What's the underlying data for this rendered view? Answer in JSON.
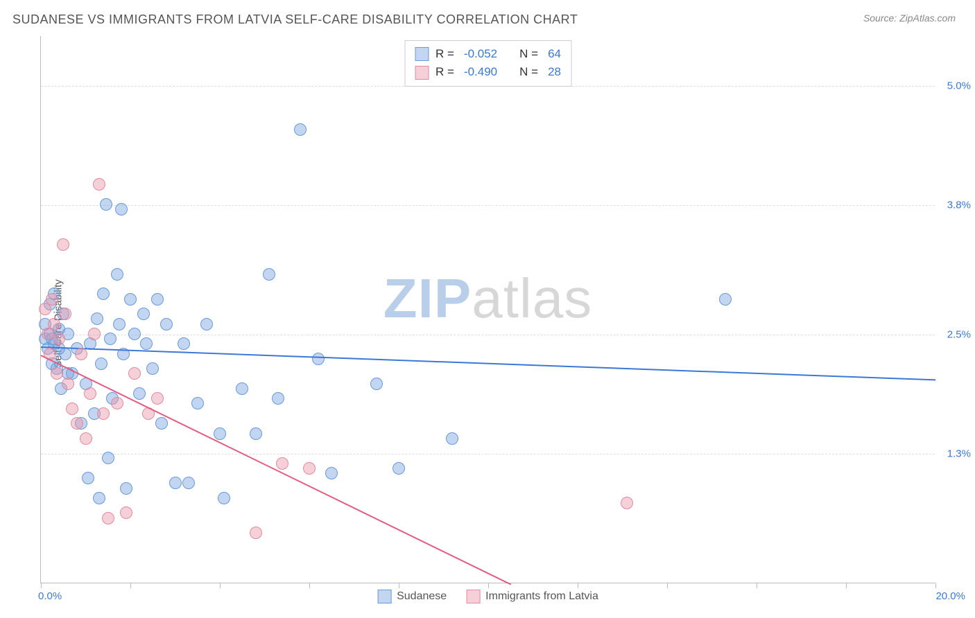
{
  "title": "SUDANESE VS IMMIGRANTS FROM LATVIA SELF-CARE DISABILITY CORRELATION CHART",
  "source": "Source: ZipAtlas.com",
  "ylabel": "Self-Care Disability",
  "watermark_a": "ZIP",
  "watermark_b": "atlas",
  "watermark_color_a": "#b9cfe9",
  "watermark_color_b": "#d7d7d7",
  "chart": {
    "type": "scatter",
    "xlim": [
      0,
      20
    ],
    "ylim": [
      0,
      5.5
    ],
    "xlim_labels": [
      "0.0%",
      "20.0%"
    ],
    "xlim_color": "#3a78d8",
    "xtick_positions": [
      0,
      2,
      4,
      6,
      8,
      10,
      12,
      14,
      16,
      18,
      20
    ],
    "ygrid": [
      {
        "value": 1.3,
        "label": "1.3%"
      },
      {
        "value": 2.5,
        "label": "2.5%"
      },
      {
        "value": 3.8,
        "label": "3.8%"
      },
      {
        "value": 5.0,
        "label": "5.0%"
      }
    ],
    "ytick_color": "#3a78d8",
    "grid_color": "#dddddd",
    "axis_color": "#bbbbbb",
    "background": "#ffffff",
    "series": [
      {
        "name": "Sudanese",
        "fill": "rgba(120,165,225,0.45)",
        "stroke": "#6a98d6",
        "line": "#3a78d8",
        "R": "-0.052",
        "N": "64",
        "trend": {
          "x1": 0,
          "y1": 2.38,
          "x2": 20,
          "y2": 2.05
        },
        "points": [
          [
            0.1,
            2.45
          ],
          [
            0.1,
            2.6
          ],
          [
            0.15,
            2.35
          ],
          [
            0.2,
            2.8
          ],
          [
            0.2,
            2.5
          ],
          [
            0.25,
            2.2
          ],
          [
            0.3,
            2.9
          ],
          [
            0.3,
            2.4
          ],
          [
            0.35,
            2.15
          ],
          [
            0.4,
            2.55
          ],
          [
            0.45,
            1.95
          ],
          [
            0.5,
            2.7
          ],
          [
            0.55,
            2.3
          ],
          [
            0.6,
            2.5
          ],
          [
            0.7,
            2.1
          ],
          [
            0.8,
            2.35
          ],
          [
            0.9,
            1.6
          ],
          [
            1.0,
            2.0
          ],
          [
            1.05,
            1.05
          ],
          [
            1.1,
            2.4
          ],
          [
            1.2,
            1.7
          ],
          [
            1.25,
            2.65
          ],
          [
            1.3,
            0.85
          ],
          [
            1.35,
            2.2
          ],
          [
            1.4,
            2.9
          ],
          [
            1.45,
            3.8
          ],
          [
            1.5,
            1.25
          ],
          [
            1.55,
            2.45
          ],
          [
            1.6,
            1.85
          ],
          [
            1.7,
            3.1
          ],
          [
            1.75,
            2.6
          ],
          [
            1.8,
            3.75
          ],
          [
            1.85,
            2.3
          ],
          [
            1.9,
            0.95
          ],
          [
            2.0,
            2.85
          ],
          [
            2.1,
            2.5
          ],
          [
            2.2,
            1.9
          ],
          [
            2.3,
            2.7
          ],
          [
            2.35,
            2.4
          ],
          [
            2.5,
            2.15
          ],
          [
            2.6,
            2.85
          ],
          [
            2.7,
            1.6
          ],
          [
            2.8,
            2.6
          ],
          [
            3.0,
            1.0
          ],
          [
            3.2,
            2.4
          ],
          [
            3.3,
            1.0
          ],
          [
            3.5,
            1.8
          ],
          [
            3.7,
            2.6
          ],
          [
            4.0,
            1.5
          ],
          [
            4.1,
            0.85
          ],
          [
            4.5,
            1.95
          ],
          [
            4.8,
            1.5
          ],
          [
            5.1,
            3.1
          ],
          [
            5.3,
            1.85
          ],
          [
            5.8,
            4.55
          ],
          [
            6.2,
            2.25
          ],
          [
            6.5,
            1.1
          ],
          [
            7.5,
            2.0
          ],
          [
            8.0,
            1.15
          ],
          [
            9.2,
            1.45
          ],
          [
            15.3,
            2.85
          ],
          [
            0.4,
            2.35
          ],
          [
            0.6,
            2.1
          ],
          [
            0.25,
            2.45
          ]
        ]
      },
      {
        "name": "Immigrants from Latvia",
        "fill": "rgba(235,150,170,0.45)",
        "stroke": "#e08aa0",
        "line": "#e55b82",
        "R": "-0.490",
        "N": "28",
        "trend": {
          "x1": 0,
          "y1": 2.3,
          "x2": 10.5,
          "y2": 0
        },
        "points": [
          [
            0.1,
            2.75
          ],
          [
            0.15,
            2.5
          ],
          [
            0.2,
            2.3
          ],
          [
            0.25,
            2.85
          ],
          [
            0.3,
            2.6
          ],
          [
            0.35,
            2.1
          ],
          [
            0.4,
            2.45
          ],
          [
            0.5,
            3.4
          ],
          [
            0.55,
            2.7
          ],
          [
            0.6,
            2.0
          ],
          [
            0.7,
            1.75
          ],
          [
            0.8,
            1.6
          ],
          [
            0.9,
            2.3
          ],
          [
            1.0,
            1.45
          ],
          [
            1.1,
            1.9
          ],
          [
            1.2,
            2.5
          ],
          [
            1.3,
            4.0
          ],
          [
            1.4,
            1.7
          ],
          [
            1.5,
            0.65
          ],
          [
            1.7,
            1.8
          ],
          [
            1.9,
            0.7
          ],
          [
            2.1,
            2.1
          ],
          [
            2.4,
            1.7
          ],
          [
            2.6,
            1.85
          ],
          [
            4.8,
            0.5
          ],
          [
            5.4,
            1.2
          ],
          [
            6.0,
            1.15
          ],
          [
            13.1,
            0.8
          ]
        ]
      }
    ],
    "legend": {
      "r_label": "R =",
      "n_label": "N =",
      "value_color": "#3a78d8"
    },
    "marker_radius": 9,
    "line_width": 2
  }
}
